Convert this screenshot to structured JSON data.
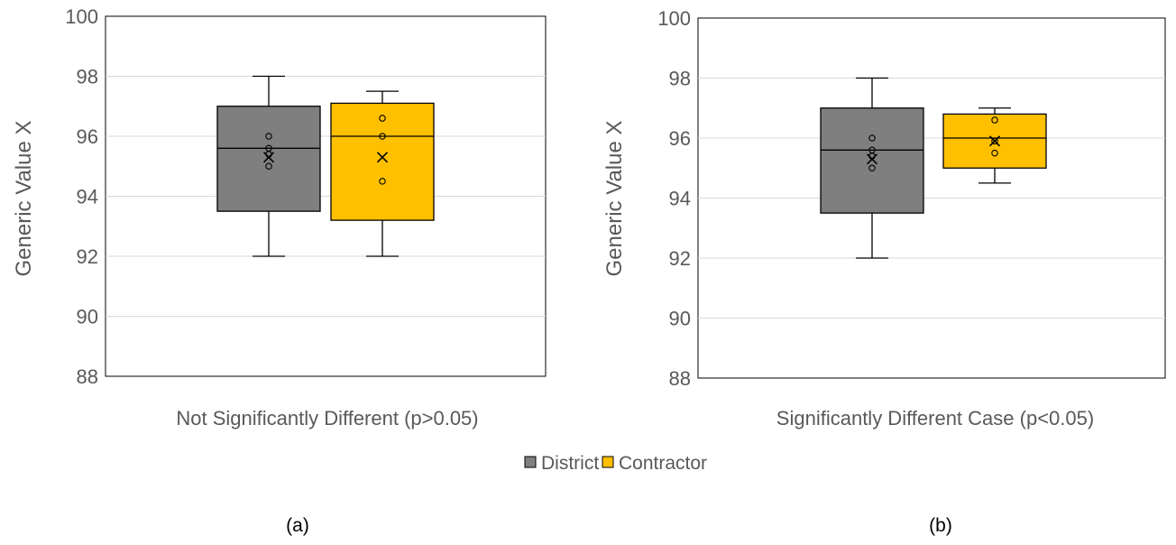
{
  "chart_data": [
    {
      "type": "box",
      "ylabel": "Generic Value X",
      "xlabel": "Not Significantly Different (p>0.05)",
      "ylim": [
        88,
        100
      ],
      "yticks": [
        "88",
        "90",
        "92",
        "94",
        "96",
        "98",
        "100"
      ],
      "grid": true,
      "series": [
        {
          "name": "District",
          "min": 92,
          "q1": 93.5,
          "median": 95.6,
          "q3": 97,
          "max": 98,
          "mean": 95.3,
          "points": [
            96,
            95.6,
            95.4,
            95
          ]
        },
        {
          "name": "Contractor",
          "min": 92,
          "q1": 93.2,
          "median": 96,
          "q3": 97.1,
          "max": 97.5,
          "mean": 95.3,
          "points": [
            96.6,
            96,
            94.5
          ]
        }
      ],
      "caption": "(a)"
    },
    {
      "type": "box",
      "ylabel": "Generic Value X",
      "xlabel": "Significantly Different Case (p<0.05)",
      "ylim": [
        88,
        100
      ],
      "yticks": [
        "88",
        "90",
        "92",
        "94",
        "96",
        "98",
        "100"
      ],
      "grid": true,
      "series": [
        {
          "name": "District",
          "min": 92,
          "q1": 93.5,
          "median": 95.6,
          "q3": 97,
          "max": 98,
          "mean": 95.3,
          "points": [
            96,
            95.6,
            95.4,
            95
          ]
        },
        {
          "name": "Contractor",
          "min": 94.5,
          "q1": 95,
          "median": 96,
          "q3": 96.8,
          "max": 97,
          "mean": 95.9,
          "points": [
            96.6,
            95.9,
            95.5
          ]
        }
      ],
      "caption": "(b)"
    }
  ],
  "legend": {
    "position": "bottom",
    "items": [
      {
        "label": "District",
        "color": "#7f7f7f"
      },
      {
        "label": "Contractor",
        "color": "#ffc000"
      }
    ]
  },
  "colors": {
    "District": "#7f7f7f",
    "Contractor": "#ffc000",
    "gridline": "#d9d9d9",
    "text": "#595959"
  }
}
